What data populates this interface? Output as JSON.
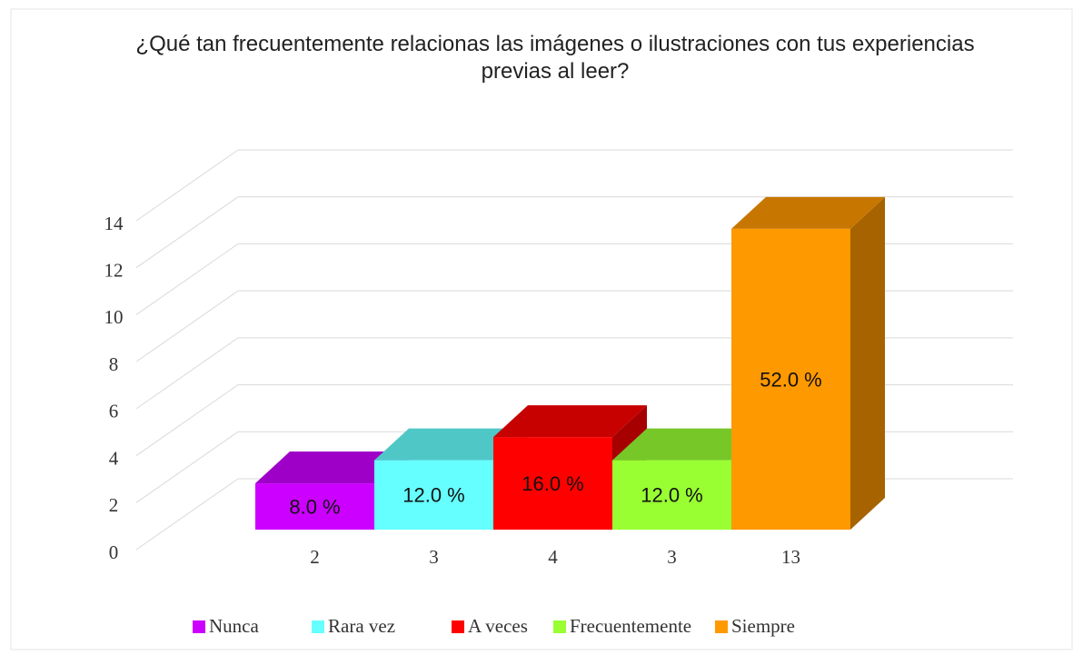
{
  "chart_data": {
    "type": "bar3d",
    "title": "¿Qué tan frecuentemente relacionas las imágenes o ilustraciones con tus experiencias previas al leer?",
    "series": [
      {
        "name": "Nunca",
        "color": "#cc00ff",
        "values": [
          2
        ],
        "share_labels": [
          "8.0 %"
        ]
      },
      {
        "name": "Rara vez",
        "color": "#66ffff",
        "values": [
          3
        ],
        "share_labels": [
          "12.0 %"
        ]
      },
      {
        "name": "A veces",
        "color": "#ff0000",
        "values": [
          4
        ],
        "share_labels": [
          "16.0 %"
        ]
      },
      {
        "name": "Frecuentemente",
        "color": "#99ff33",
        "values": [
          3
        ],
        "share_labels": [
          "12.0 %"
        ]
      },
      {
        "name": "Siempre",
        "color": "#ff9900",
        "values": [
          13
        ],
        "share_labels": [
          "52.0 %"
        ]
      }
    ],
    "ylim": [
      0,
      14
    ],
    "yticks": [
      0,
      2,
      4,
      6,
      8,
      10,
      12,
      14
    ],
    "grid": true,
    "legend": "bottom"
  }
}
